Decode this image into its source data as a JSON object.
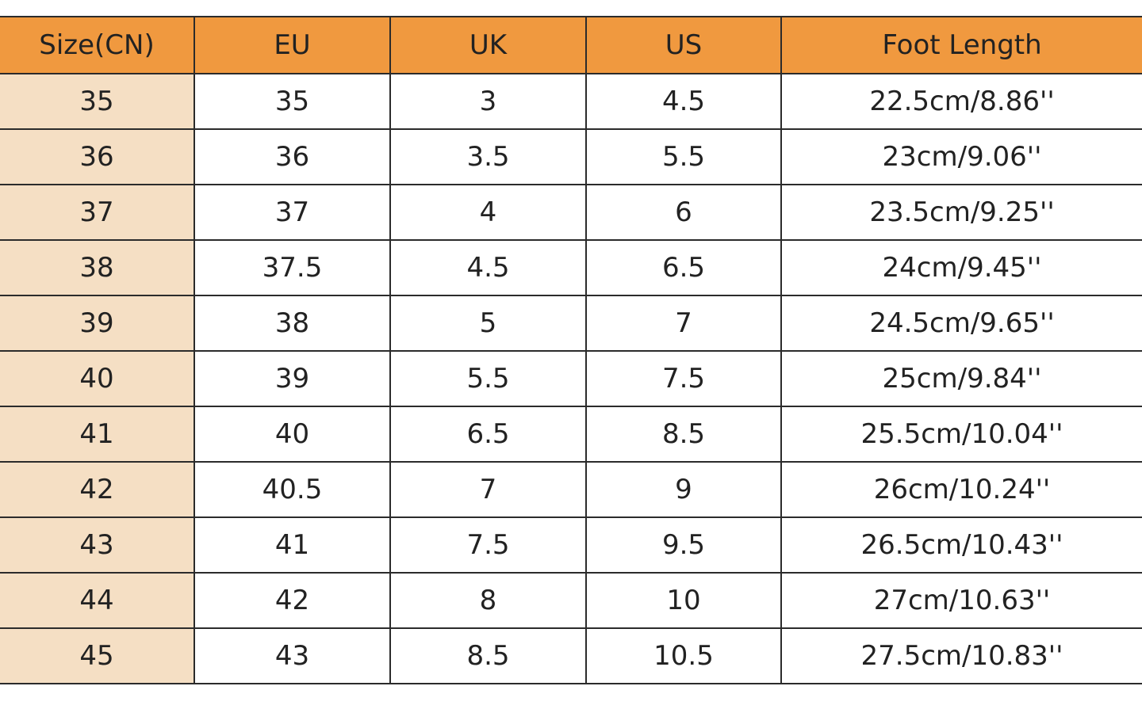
{
  "table": {
    "header": [
      "Size(CN)",
      "EU",
      "UK",
      "US",
      "Foot Length"
    ],
    "rows": [
      [
        "35",
        "35",
        "3",
        "4.5",
        "22.5cm/8.86''"
      ],
      [
        "36",
        "36",
        "3.5",
        "5.5",
        "23cm/9.06''"
      ],
      [
        "37",
        "37",
        "4",
        "6",
        "23.5cm/9.25''"
      ],
      [
        "38",
        "37.5",
        "4.5",
        "6.5",
        "24cm/9.45''"
      ],
      [
        "39",
        "38",
        "5",
        "7",
        "24.5cm/9.65''"
      ],
      [
        "40",
        "39",
        "5.5",
        "7.5",
        "25cm/9.84''"
      ],
      [
        "41",
        "40",
        "6.5",
        "8.5",
        "25.5cm/10.04''"
      ],
      [
        "42",
        "40.5",
        "7",
        "9",
        "26cm/10.24''"
      ],
      [
        "43",
        "41",
        "7.5",
        "9.5",
        "26.5cm/10.43''"
      ],
      [
        "44",
        "42",
        "8",
        "10",
        "27cm/10.63''"
      ],
      [
        "45",
        "43",
        "8.5",
        "10.5",
        "27.5cm/10.83''"
      ]
    ]
  }
}
